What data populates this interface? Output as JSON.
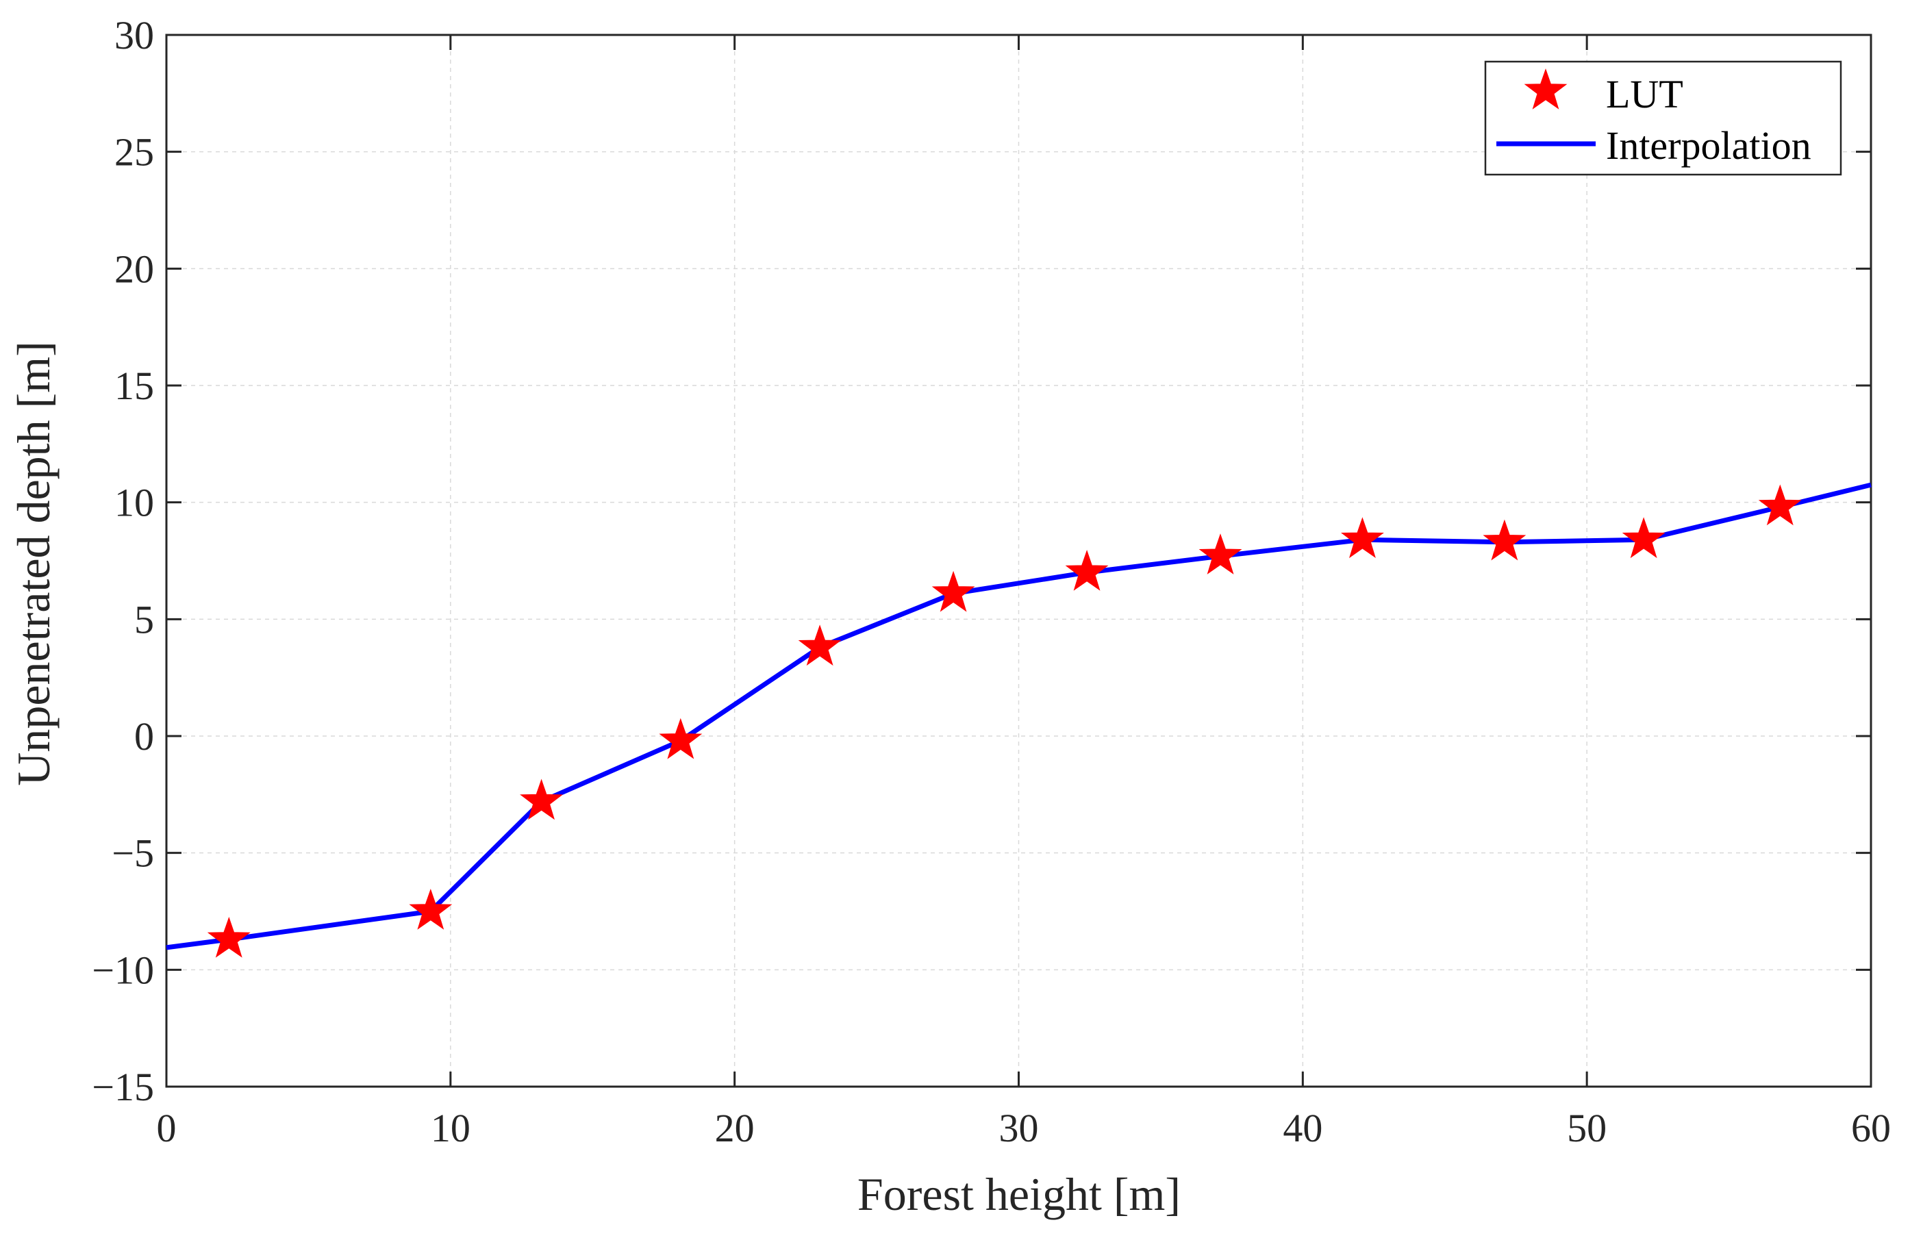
{
  "chart_data": {
    "type": "line",
    "title": "",
    "xlabel": "Forest height [m]",
    "ylabel": "Unpenetrated depth [m]",
    "xlim": [
      0,
      60
    ],
    "ylim": [
      -15,
      30
    ],
    "xticks": [
      0,
      10,
      20,
      30,
      40,
      50,
      60
    ],
    "yticks": [
      -15,
      -10,
      -5,
      0,
      5,
      10,
      15,
      20,
      25,
      30
    ],
    "xtick_labels": [
      "0",
      "10",
      "20",
      "30",
      "40",
      "50",
      "60"
    ],
    "ytick_labels": [
      "−15",
      "−10",
      "−5",
      "0",
      "5",
      "10",
      "15",
      "20",
      "25",
      "30"
    ],
    "grid": true,
    "legend_position": "top-right",
    "series": [
      {
        "name": "LUT",
        "style": "markers",
        "marker": "star",
        "color": "#ff0000",
        "x": [
          2.2,
          9.3,
          13.2,
          18.1,
          23.0,
          27.7,
          32.4,
          37.1,
          42.1,
          47.1,
          52.0,
          56.8
        ],
        "y": [
          -8.7,
          -7.5,
          -2.8,
          -0.2,
          3.8,
          6.1,
          7.0,
          7.7,
          8.4,
          8.3,
          8.4,
          9.8
        ]
      },
      {
        "name": "Interpolation",
        "style": "line",
        "color": "#0000ff",
        "x": [
          0,
          2.2,
          9.3,
          13.2,
          18.1,
          23.0,
          27.7,
          32.4,
          37.1,
          42.1,
          47.1,
          52.0,
          56.8,
          60
        ],
        "y": [
          -9.05,
          -8.7,
          -7.5,
          -2.8,
          -0.2,
          3.8,
          6.1,
          7.0,
          7.7,
          8.4,
          8.3,
          8.4,
          9.8,
          10.75
        ]
      }
    ]
  }
}
